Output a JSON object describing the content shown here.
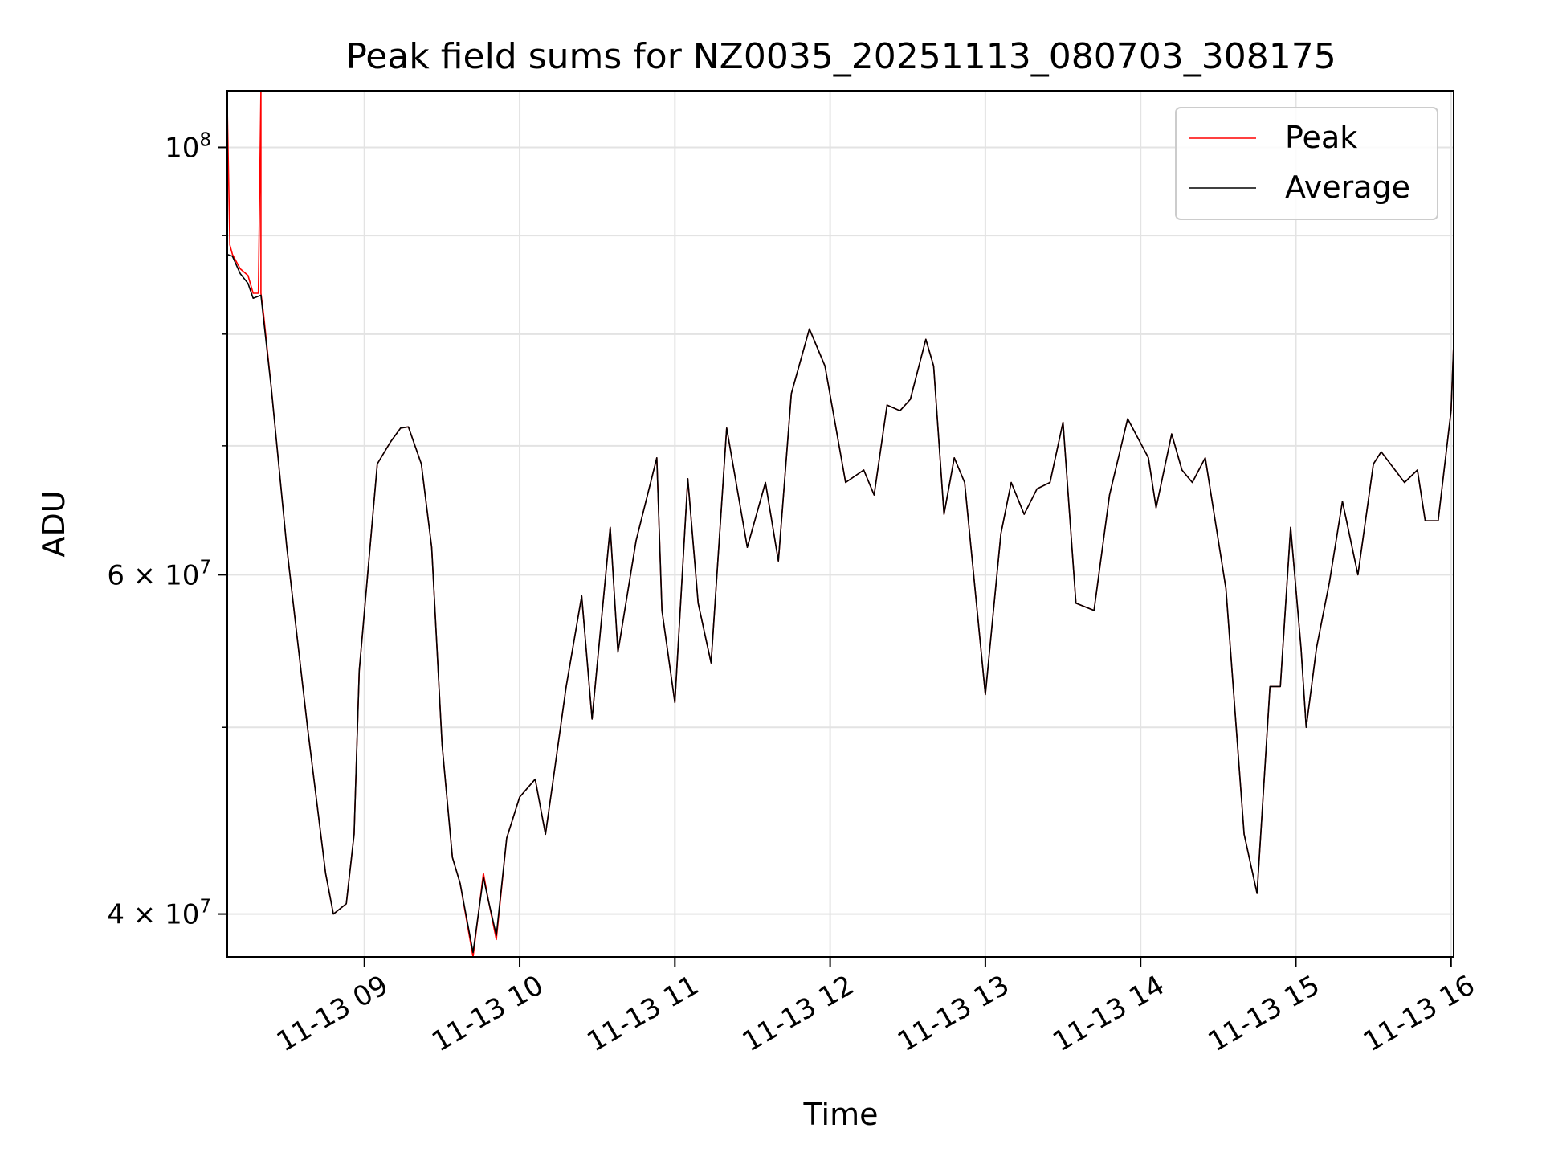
{
  "chart_data": {
    "type": "line",
    "title": "Peak field sums for NZ0035_20251113_080703_308175",
    "xlabel": "Time",
    "ylabel": "ADU",
    "y_scale": "log",
    "ylim": [
      38000000,
      107000000
    ],
    "x_range": [
      "2025-11-13 08:07",
      "2025-11-13 16:01"
    ],
    "grid": true,
    "legend_position": "upper-right",
    "x_ticks": [
      {
        "t": "2025-11-13 09:00",
        "label": "11-13 09"
      },
      {
        "t": "2025-11-13 10:00",
        "label": "11-13 10"
      },
      {
        "t": "2025-11-13 11:00",
        "label": "11-13 11"
      },
      {
        "t": "2025-11-13 12:00",
        "label": "11-13 12"
      },
      {
        "t": "2025-11-13 13:00",
        "label": "11-13 13"
      },
      {
        "t": "2025-11-13 14:00",
        "label": "11-13 14"
      },
      {
        "t": "2025-11-13 15:00",
        "label": "11-13 15"
      },
      {
        "t": "2025-11-13 16:00",
        "label": "11-13 16"
      }
    ],
    "y_major_ticks": [
      {
        "value": 40000000,
        "mantissa": "4",
        "exponent": "7"
      },
      {
        "value": 60000000,
        "mantissa": "6",
        "exponent": "7"
      },
      {
        "value": 100000000,
        "mantissa": "",
        "exponent": "8"
      }
    ],
    "y_minor_gridlines": [
      50000000,
      70000000,
      80000000,
      90000000
    ],
    "series": [
      {
        "name": "Peak",
        "color": "#ff0000",
        "times": [
          "2025-11-13 08:07",
          "2025-11-13 08:08",
          "2025-11-13 08:09",
          "2025-11-13 08:12",
          "2025-11-13 08:15",
          "2025-11-13 08:17",
          "2025-11-13 08:19",
          "2025-11-13 08:20",
          "2025-11-13 08:20",
          "2025-11-13 08:21",
          "2025-11-13 08:24",
          "2025-11-13 08:30",
          "2025-11-13 08:38",
          "2025-11-13 08:45",
          "2025-11-13 08:48",
          "2025-11-13 08:53",
          "2025-11-13 08:56",
          "2025-11-13 08:58",
          "2025-11-13 09:05",
          "2025-11-13 09:10",
          "2025-11-13 09:14",
          "2025-11-13 09:17",
          "2025-11-13 09:22",
          "2025-11-13 09:26",
          "2025-11-13 09:30",
          "2025-11-13 09:34",
          "2025-11-13 09:37",
          "2025-11-13 09:42",
          "2025-11-13 09:46",
          "2025-11-13 09:48",
          "2025-11-13 09:51",
          "2025-11-13 09:55",
          "2025-11-13 10:00",
          "2025-11-13 10:06",
          "2025-11-13 10:10",
          "2025-11-13 10:13",
          "2025-11-13 10:18",
          "2025-11-13 10:24",
          "2025-11-13 10:28",
          "2025-11-13 10:35",
          "2025-11-13 10:38",
          "2025-11-13 10:45",
          "2025-11-13 10:53",
          "2025-11-13 10:55",
          "2025-11-13 11:00",
          "2025-11-13 11:05",
          "2025-11-13 11:09",
          "2025-11-13 11:14",
          "2025-11-13 11:20",
          "2025-11-13 11:28",
          "2025-11-13 11:35",
          "2025-11-13 11:40",
          "2025-11-13 11:45",
          "2025-11-13 11:52",
          "2025-11-13 11:58",
          "2025-11-13 12:06",
          "2025-11-13 12:13",
          "2025-11-13 12:17",
          "2025-11-13 12:22",
          "2025-11-13 12:27",
          "2025-11-13 12:31",
          "2025-11-13 12:37",
          "2025-11-13 12:40",
          "2025-11-13 12:44",
          "2025-11-13 12:48",
          "2025-11-13 12:52",
          "2025-11-13 13:00",
          "2025-11-13 13:06",
          "2025-11-13 13:10",
          "2025-11-13 13:15",
          "2025-11-13 13:20",
          "2025-11-13 13:25",
          "2025-11-13 13:30",
          "2025-11-13 13:35",
          "2025-11-13 13:42",
          "2025-11-13 13:48",
          "2025-11-13 13:55",
          "2025-11-13 14:03",
          "2025-11-13 14:06",
          "2025-11-13 14:12",
          "2025-11-13 14:16",
          "2025-11-13 14:20",
          "2025-11-13 14:25",
          "2025-11-13 14:33",
          "2025-11-13 14:40",
          "2025-11-13 14:45",
          "2025-11-13 14:50",
          "2025-11-13 14:54",
          "2025-11-13 14:58",
          "2025-11-13 15:02",
          "2025-11-13 15:04",
          "2025-11-13 15:08",
          "2025-11-13 15:13",
          "2025-11-13 15:18",
          "2025-11-13 15:24",
          "2025-11-13 15:30",
          "2025-11-13 15:33",
          "2025-11-13 15:42",
          "2025-11-13 15:47",
          "2025-11-13 15:50",
          "2025-11-13 15:55",
          "2025-11-13 16:00",
          "2025-11-13 16:01"
        ],
        "values": [
          105000000,
          89000000,
          88000000,
          86500000,
          85800000,
          84000000,
          84000000,
          107000000,
          84000000,
          82000000,
          75000000,
          62000000,
          50000000,
          42000000,
          40000000,
          40500000,
          44000000,
          53500000,
          68500000,
          70300000,
          71500000,
          71600000,
          68500000,
          62000000,
          49000000,
          42800000,
          41500000,
          38000000,
          42000000,
          40600000,
          38800000,
          43800000,
          46000000,
          47000000,
          44000000,
          47000000,
          52500000,
          58500000,
          50500000,
          63500000,
          54700000,
          62500000,
          69000000,
          57500000,
          51500000,
          67300000,
          58000000,
          54000000,
          71500000,
          62000000,
          67000000,
          61000000,
          74500000,
          80500000,
          77000000,
          67000000,
          68000000,
          66000000,
          73500000,
          73000000,
          74000000,
          79500000,
          77000000,
          64500000,
          69000000,
          67000000,
          52000000,
          63000000,
          67000000,
          64500000,
          66500000,
          67000000,
          72000000,
          58000000,
          57500000,
          66000000,
          72300000,
          69000000,
          65000000,
          71000000,
          68000000,
          67000000,
          69000000,
          59000000,
          44000000,
          41000000,
          52500000,
          52500000,
          63500000,
          55000000,
          50000000,
          55000000,
          59500000,
          65500000,
          60000000,
          68500000,
          69500000,
          67000000,
          68000000,
          64000000,
          64000000,
          73000000,
          79000000
        ]
      },
      {
        "name": "Average",
        "color": "#000000",
        "times": [
          "2025-11-13 08:07",
          "2025-11-13 08:09",
          "2025-11-13 08:12",
          "2025-11-13 08:15",
          "2025-11-13 08:17",
          "2025-11-13 08:20",
          "2025-11-13 08:21",
          "2025-11-13 08:24",
          "2025-11-13 08:30",
          "2025-11-13 08:38",
          "2025-11-13 08:45",
          "2025-11-13 08:48",
          "2025-11-13 08:53",
          "2025-11-13 08:56",
          "2025-11-13 08:58",
          "2025-11-13 09:05",
          "2025-11-13 09:10",
          "2025-11-13 09:14",
          "2025-11-13 09:17",
          "2025-11-13 09:22",
          "2025-11-13 09:26",
          "2025-11-13 09:30",
          "2025-11-13 09:34",
          "2025-11-13 09:37",
          "2025-11-13 09:42",
          "2025-11-13 09:46",
          "2025-11-13 09:48",
          "2025-11-13 09:51",
          "2025-11-13 09:55",
          "2025-11-13 10:00",
          "2025-11-13 10:06",
          "2025-11-13 10:10",
          "2025-11-13 10:13",
          "2025-11-13 10:18",
          "2025-11-13 10:24",
          "2025-11-13 10:28",
          "2025-11-13 10:35",
          "2025-11-13 10:38",
          "2025-11-13 10:45",
          "2025-11-13 10:53",
          "2025-11-13 10:55",
          "2025-11-13 11:00",
          "2025-11-13 11:05",
          "2025-11-13 11:09",
          "2025-11-13 11:14",
          "2025-11-13 11:20",
          "2025-11-13 11:28",
          "2025-11-13 11:35",
          "2025-11-13 11:40",
          "2025-11-13 11:45",
          "2025-11-13 11:52",
          "2025-11-13 11:58",
          "2025-11-13 12:06",
          "2025-11-13 12:13",
          "2025-11-13 12:17",
          "2025-11-13 12:22",
          "2025-11-13 12:27",
          "2025-11-13 12:31",
          "2025-11-13 12:37",
          "2025-11-13 12:40",
          "2025-11-13 12:44",
          "2025-11-13 12:48",
          "2025-11-13 12:52",
          "2025-11-13 13:00",
          "2025-11-13 13:06",
          "2025-11-13 13:10",
          "2025-11-13 13:15",
          "2025-11-13 13:20",
          "2025-11-13 13:25",
          "2025-11-13 13:30",
          "2025-11-13 13:35",
          "2025-11-13 13:42",
          "2025-11-13 13:48",
          "2025-11-13 13:55",
          "2025-11-13 14:03",
          "2025-11-13 14:06",
          "2025-11-13 14:12",
          "2025-11-13 14:16",
          "2025-11-13 14:20",
          "2025-11-13 14:25",
          "2025-11-13 14:33",
          "2025-11-13 14:40",
          "2025-11-13 14:45",
          "2025-11-13 14:50",
          "2025-11-13 14:54",
          "2025-11-13 14:58",
          "2025-11-13 15:02",
          "2025-11-13 15:04",
          "2025-11-13 15:08",
          "2025-11-13 15:13",
          "2025-11-13 15:18",
          "2025-11-13 15:24",
          "2025-11-13 15:30",
          "2025-11-13 15:33",
          "2025-11-13 15:42",
          "2025-11-13 15:47",
          "2025-11-13 15:50",
          "2025-11-13 15:55",
          "2025-11-13 16:00",
          "2025-11-13 16:01"
        ],
        "values": [
          88000000,
          87800000,
          86000000,
          85000000,
          83500000,
          83800000,
          81500000,
          75000000,
          62000000,
          50000000,
          42000000,
          40000000,
          40500000,
          44000000,
          53500000,
          68500000,
          70300000,
          71500000,
          71600000,
          68500000,
          62000000,
          49000000,
          42800000,
          41500000,
          38200000,
          41800000,
          40600000,
          39000000,
          43800000,
          46000000,
          47000000,
          44000000,
          47000000,
          52500000,
          58500000,
          50500000,
          63500000,
          54700000,
          62500000,
          69000000,
          57500000,
          51500000,
          67300000,
          58000000,
          54000000,
          71500000,
          62000000,
          67000000,
          61000000,
          74500000,
          80500000,
          77000000,
          67000000,
          68000000,
          66000000,
          73500000,
          73000000,
          74000000,
          79500000,
          77000000,
          64500000,
          69000000,
          67000000,
          52000000,
          63000000,
          67000000,
          64500000,
          66500000,
          67000000,
          72000000,
          58000000,
          57500000,
          66000000,
          72300000,
          69000000,
          65000000,
          71000000,
          68000000,
          67000000,
          69000000,
          59000000,
          44000000,
          41000000,
          52500000,
          52500000,
          63500000,
          55000000,
          50000000,
          55000000,
          59500000,
          65500000,
          60000000,
          68500000,
          69500000,
          67000000,
          68000000,
          64000000,
          64000000,
          73000000,
          79000000
        ]
      }
    ]
  }
}
